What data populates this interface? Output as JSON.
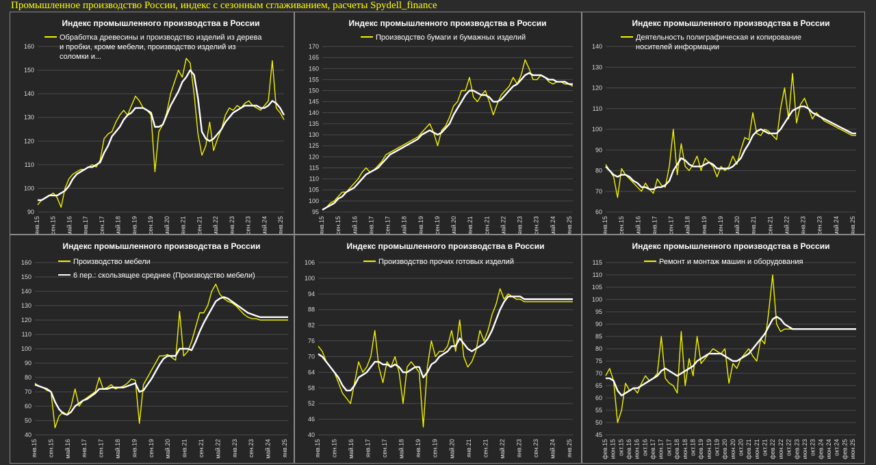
{
  "page": {
    "title": "Промышленное производство России, индекс с сезонным сглаживанием, расчеты Spydell_finance"
  },
  "colors": {
    "raw": "#f2f200",
    "smooth": "#ffffff",
    "background": "#262626",
    "grid": "#4a4a4a"
  },
  "chart_data": [
    {
      "type": "line",
      "title": "Индекс промышленного производства в России",
      "legend": [
        "Обработка древесины и производство изделий из дерева и пробки, кроме мебели, производство изделий из соломки и..."
      ],
      "ylim": [
        90,
        160
      ],
      "yticks": [
        90,
        100,
        110,
        120,
        130,
        140,
        150,
        160
      ],
      "xticks": [
        "янв.15",
        "сен.15",
        "май.16",
        "янв.17",
        "сен.17",
        "май.18",
        "янв.19",
        "сен.19",
        "май.20",
        "янв.21",
        "сен.21",
        "май.22",
        "янв.23",
        "сен.23",
        "май.24",
        "янв.25"
      ],
      "series": [
        {
          "name": "raw",
          "values": [
            93,
            95,
            96,
            97,
            98,
            96,
            92,
            100,
            104,
            106,
            107,
            108,
            108,
            109,
            110,
            109,
            112,
            121,
            123,
            124,
            128,
            131,
            133,
            131,
            135,
            139,
            137,
            134,
            133,
            131,
            107,
            124,
            127,
            132,
            140,
            145,
            150,
            147,
            155,
            153,
            140,
            123,
            114,
            118,
            128,
            116,
            121,
            125,
            131,
            134,
            133,
            135,
            134,
            136,
            137,
            135,
            134,
            133,
            135,
            137,
            154,
            134,
            132,
            129
          ]
        },
        {
          "name": "smooth",
          "values": [
            95,
            95,
            96,
            97,
            97,
            97,
            98,
            99,
            101,
            104,
            106,
            107,
            108,
            109,
            109,
            110,
            111,
            115,
            118,
            122,
            124,
            126,
            129,
            131,
            132,
            134,
            134,
            134,
            133,
            132,
            126,
            126,
            127,
            131,
            135,
            138,
            141,
            145,
            147,
            150,
            148,
            138,
            124,
            121,
            120,
            121,
            123,
            125,
            128,
            130,
            132,
            133,
            134,
            135,
            135,
            135,
            135,
            134,
            134,
            135,
            137,
            136,
            134,
            131
          ]
        }
      ]
    },
    {
      "type": "line",
      "title": "Индекс промышленного производства в России",
      "legend": [
        "Производство бумаги и бумажных изделий"
      ],
      "ylim": [
        95,
        170
      ],
      "yticks": [
        95,
        100,
        105,
        110,
        115,
        120,
        125,
        130,
        135,
        140,
        145,
        150,
        155,
        160,
        165,
        170
      ],
      "xticks": [
        "янв.15",
        "сен.15",
        "май.16",
        "янв.17",
        "сен.17",
        "май.18",
        "янв.19",
        "сен.19",
        "май.20",
        "янв.21",
        "сен.21",
        "май.22",
        "янв.23",
        "сен.23",
        "май.24",
        "янв.25"
      ],
      "series": [
        {
          "name": "raw",
          "values": [
            96,
            97,
            99,
            100,
            102,
            104,
            104,
            106,
            108,
            110,
            113,
            115,
            113,
            114,
            116,
            118,
            121,
            122,
            123,
            124,
            125,
            126,
            127,
            128,
            129,
            131,
            133,
            135,
            131,
            125,
            132,
            134,
            138,
            143,
            145,
            150,
            150,
            156,
            147,
            145,
            148,
            150,
            145,
            139,
            144,
            148,
            150,
            152,
            156,
            153,
            157,
            164,
            160,
            155,
            155,
            157,
            156,
            154,
            153,
            154,
            154,
            153,
            153,
            152
          ]
        },
        {
          "name": "smooth",
          "values": [
            96,
            97,
            98,
            99,
            101,
            102,
            104,
            105,
            106,
            108,
            110,
            112,
            113,
            114,
            115,
            117,
            119,
            121,
            122,
            123,
            124,
            125,
            126,
            127,
            128,
            130,
            131,
            132,
            131,
            130,
            131,
            133,
            135,
            139,
            142,
            145,
            148,
            150,
            150,
            149,
            148,
            148,
            147,
            145,
            145,
            146,
            148,
            150,
            152,
            153,
            155,
            157,
            158,
            157,
            157,
            157,
            156,
            155,
            155,
            154,
            154,
            154,
            153,
            153
          ]
        }
      ]
    },
    {
      "type": "line",
      "title": "Индекс промышленного производства в России",
      "legend": [
        "Деятельность полиграфическая и копирование носителей информации"
      ],
      "ylim": [
        60,
        140
      ],
      "yticks": [
        60,
        70,
        80,
        90,
        100,
        110,
        120,
        130,
        140
      ],
      "xticks": [
        "янв.15",
        "сен.15",
        "май.16",
        "янв.17",
        "сен.17",
        "май.18",
        "янв.19",
        "сен.19",
        "май.20",
        "янв.21",
        "сен.21",
        "май.22",
        "янв.23",
        "сен.23",
        "май.24",
        "янв.25"
      ],
      "series": [
        {
          "name": "raw",
          "values": [
            83,
            80,
            77,
            67,
            81,
            78,
            76,
            74,
            72,
            70,
            74,
            71,
            69,
            76,
            73,
            72,
            82,
            100,
            78,
            93,
            82,
            80,
            83,
            87,
            80,
            86,
            84,
            82,
            77,
            82,
            80,
            82,
            87,
            83,
            90,
            96,
            95,
            108,
            98,
            97,
            100,
            99,
            97,
            95,
            110,
            120,
            105,
            127,
            103,
            112,
            115,
            110,
            105,
            108,
            106,
            104,
            103,
            102,
            101,
            100,
            99,
            98,
            97,
            97
          ]
        },
        {
          "name": "smooth",
          "values": [
            82,
            80,
            78,
            77,
            78,
            78,
            77,
            75,
            74,
            72,
            72,
            71,
            71,
            72,
            72,
            73,
            75,
            80,
            83,
            86,
            85,
            83,
            82,
            82,
            82,
            83,
            84,
            83,
            81,
            81,
            81,
            81,
            82,
            84,
            86,
            90,
            93,
            97,
            99,
            100,
            99,
            98,
            98,
            98,
            100,
            103,
            106,
            109,
            110,
            111,
            111,
            110,
            108,
            107,
            106,
            105,
            104,
            103,
            102,
            101,
            100,
            99,
            98,
            98
          ]
        }
      ]
    },
    {
      "type": "line",
      "title": "Индекс промышленного производства в России",
      "legend": [
        "Производство мебели",
        "6 пер.: скользящее среднее (Производство мебели)"
      ],
      "ylim": [
        40,
        160
      ],
      "yticks": [
        40,
        50,
        60,
        70,
        80,
        90,
        100,
        110,
        120,
        130,
        140,
        150,
        160
      ],
      "xticks": [
        "янв.15",
        "сен.15",
        "май.16",
        "янв.17",
        "сен.17",
        "май.18",
        "янв.19",
        "сен.19",
        "май.20",
        "янв.21",
        "сен.21",
        "май.22",
        "янв.23",
        "сен.23",
        "май.24",
        "янв.25"
      ],
      "series": [
        {
          "name": "raw",
          "values": [
            76,
            74,
            73,
            71,
            70,
            45,
            53,
            56,
            54,
            60,
            72,
            60,
            64,
            66,
            68,
            70,
            80,
            72,
            73,
            75,
            72,
            73,
            74,
            76,
            79,
            78,
            48,
            75,
            80,
            85,
            90,
            95,
            95,
            96,
            94,
            92,
            126,
            95,
            98,
            105,
            115,
            125,
            125,
            130,
            140,
            145,
            138,
            135,
            133,
            132,
            130,
            127,
            124,
            122,
            121,
            121,
            120,
            120,
            120,
            120,
            120,
            120,
            120,
            120
          ]
        },
        {
          "name": "smooth",
          "values": [
            75,
            74,
            73,
            72,
            70,
            63,
            58,
            55,
            54,
            56,
            60,
            62,
            64,
            65,
            67,
            69,
            72,
            72,
            72,
            73,
            73,
            73,
            73,
            74,
            75,
            76,
            70,
            71,
            75,
            79,
            84,
            89,
            93,
            95,
            95,
            95,
            100,
            100,
            100,
            99,
            105,
            112,
            118,
            123,
            128,
            133,
            135,
            136,
            135,
            133,
            131,
            129,
            127,
            125,
            124,
            123,
            122,
            122,
            122,
            122,
            122,
            122,
            122,
            122
          ]
        }
      ]
    },
    {
      "type": "line",
      "title": "Индекс промышленного производства в России",
      "legend": [
        "Производство прочих готовых изделий"
      ],
      "ylim": [
        40,
        106
      ],
      "yticks": [
        40,
        46,
        52,
        58,
        64,
        70,
        76,
        82,
        88,
        94,
        100,
        106
      ],
      "xticks": [
        "янв.15",
        "сен.15",
        "май.16",
        "янв.17",
        "сен.17",
        "май.18",
        "янв.19",
        "сен.19",
        "май.20",
        "янв.21",
        "сен.21",
        "май.22",
        "янв.23",
        "сен.23",
        "май.24",
        "янв.25"
      ],
      "series": [
        {
          "name": "raw",
          "values": [
            74,
            72,
            68,
            66,
            64,
            60,
            56,
            54,
            52,
            60,
            68,
            64,
            66,
            70,
            80,
            66,
            60,
            68,
            66,
            70,
            64,
            52,
            66,
            68,
            66,
            64,
            43,
            66,
            76,
            70,
            72,
            72,
            74,
            80,
            72,
            84,
            70,
            66,
            68,
            72,
            80,
            76,
            80,
            86,
            90,
            96,
            92,
            94,
            93,
            92,
            92,
            91,
            91,
            91,
            91,
            91,
            91,
            91,
            91,
            91,
            91,
            91,
            91,
            91
          ]
        },
        {
          "name": "smooth",
          "values": [
            71,
            70,
            68,
            66,
            64,
            62,
            59,
            57,
            57,
            59,
            62,
            63,
            64,
            66,
            68,
            68,
            67,
            67,
            66,
            67,
            66,
            64,
            64,
            65,
            66,
            66,
            62,
            64,
            67,
            68,
            70,
            71,
            72,
            74,
            74,
            77,
            75,
            73,
            72,
            73,
            74,
            75,
            77,
            80,
            84,
            88,
            91,
            93,
            93,
            93,
            93,
            92,
            92,
            92,
            92,
            92,
            92,
            92,
            92,
            92,
            92,
            92,
            92,
            92
          ]
        }
      ]
    },
    {
      "type": "line",
      "title": "Индекс промышленного производства в России",
      "legend": [
        "Ремонт и монтаж машин и оборудования"
      ],
      "ylim": [
        45,
        115
      ],
      "yticks": [
        45,
        50,
        55,
        60,
        65,
        70,
        75,
        80,
        85,
        90,
        95,
        100,
        105,
        110,
        115
      ],
      "xticks": [
        "фев.15",
        "июн.15",
        "окт.15",
        "фев.16",
        "июн.16",
        "окт.16",
        "фев.17",
        "июн.17",
        "окт.17",
        "фев.18",
        "июн.18",
        "окт.18",
        "фев.19",
        "июн.19",
        "окт.19",
        "фев.20",
        "июн.20",
        "окт.20",
        "фев.21",
        "июн.21",
        "окт.21",
        "фев.22",
        "июн.22",
        "окт.22",
        "фев.23",
        "июн.23",
        "окт.23",
        "фев.24",
        "июн.24",
        "окт.24",
        "фев.25",
        "июн.25"
      ],
      "series": [
        {
          "name": "raw",
          "values": [
            69,
            72,
            67,
            50,
            55,
            66,
            63,
            64,
            62,
            66,
            69,
            67,
            68,
            70,
            85,
            68,
            66,
            65,
            62,
            87,
            65,
            76,
            69,
            85,
            74,
            76,
            78,
            80,
            79,
            78,
            80,
            66,
            74,
            72,
            76,
            78,
            80,
            77,
            75,
            84,
            82,
            95,
            110,
            90,
            87,
            88,
            88,
            88,
            88,
            88,
            88,
            88,
            88,
            88,
            88,
            88,
            88,
            88,
            88,
            88,
            88,
            88,
            88,
            88
          ]
        },
        {
          "name": "smooth",
          "values": [
            68,
            68,
            67,
            63,
            61,
            62,
            63,
            64,
            64,
            65,
            66,
            67,
            68,
            69,
            71,
            72,
            71,
            70,
            69,
            70,
            71,
            72,
            73,
            75,
            76,
            77,
            78,
            78,
            78,
            78,
            77,
            76,
            75,
            75,
            76,
            77,
            78,
            80,
            82,
            84,
            86,
            89,
            92,
            93,
            92,
            90,
            89,
            88,
            88,
            88,
            88,
            88,
            88,
            88,
            88,
            88,
            88,
            88,
            88,
            88,
            88,
            88,
            88,
            88
          ]
        }
      ]
    }
  ]
}
